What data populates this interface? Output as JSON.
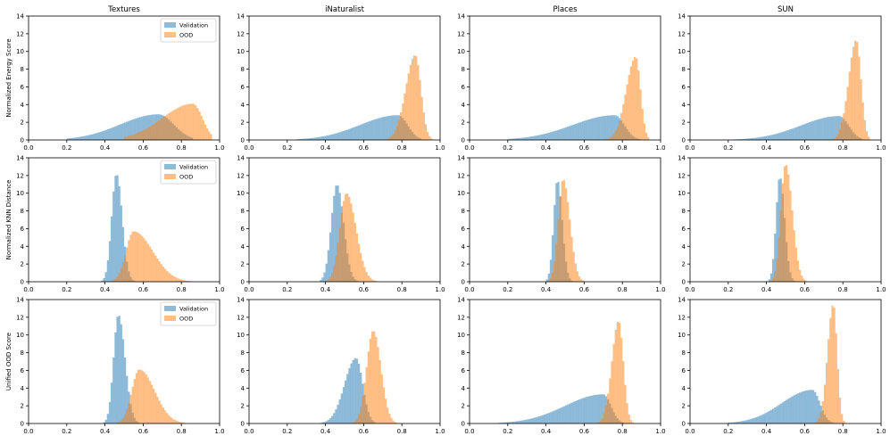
{
  "figure": {
    "colors": {
      "validation": "#1f77b4",
      "ood": "#ff7f0e",
      "alpha": 0.5
    }
  },
  "chart_data": [
    {
      "type": "histogram",
      "title": "Textures",
      "ylabel": "Normalized Energy Score",
      "xlim": [
        0,
        1
      ],
      "ylim": [
        0,
        14
      ],
      "xticks": [
        "0.0",
        "0.2",
        "0.4",
        "0.6",
        "0.8",
        "1.0"
      ],
      "yticks": [
        "0",
        "2",
        "4",
        "6",
        "8",
        "10",
        "12",
        "14"
      ],
      "legend": {
        "placement": "top-right",
        "entries": [
          "Validation",
          "OOD"
        ]
      },
      "series": [
        {
          "name": "Validation",
          "shape": "skew",
          "mode": 0.68,
          "left": 0.2,
          "right": 0.86,
          "peak": 2.9,
          "wl": 0.2,
          "wr": 0.08
        },
        {
          "name": "OOD",
          "shape": "skew",
          "mode": 0.86,
          "left": 0.5,
          "right": 0.96,
          "peak": 4.1,
          "wl": 0.16,
          "wr": 0.05
        }
      ]
    },
    {
      "type": "histogram",
      "title": "iNaturalist",
      "ylabel": "",
      "xlim": [
        0,
        1
      ],
      "ylim": [
        0,
        14
      ],
      "xticks": [
        "0.0",
        "0.2",
        "0.4",
        "0.6",
        "0.8",
        "1.0"
      ],
      "yticks": [
        "0",
        "2",
        "4",
        "6",
        "8",
        "10",
        "12",
        "14"
      ],
      "series": [
        {
          "name": "Validation",
          "shape": "skew",
          "mode": 0.78,
          "left": 0.25,
          "right": 0.9,
          "peak": 2.8,
          "wl": 0.2,
          "wr": 0.05
        },
        {
          "name": "OOD",
          "shape": "skew",
          "mode": 0.87,
          "left": 0.62,
          "right": 0.96,
          "peak": 9.6,
          "wl": 0.05,
          "wr": 0.03
        }
      ]
    },
    {
      "type": "histogram",
      "title": "Places",
      "ylabel": "",
      "xlim": [
        0,
        1
      ],
      "ylim": [
        0,
        14
      ],
      "xticks": [
        "0.0",
        "0.2",
        "0.4",
        "0.6",
        "0.8",
        "1.0"
      ],
      "yticks": [
        "0",
        "2",
        "4",
        "6",
        "8",
        "10",
        "12",
        "14"
      ],
      "series": [
        {
          "name": "Validation",
          "shape": "skew",
          "mode": 0.76,
          "left": 0.2,
          "right": 0.9,
          "peak": 2.8,
          "wl": 0.22,
          "wr": 0.05
        },
        {
          "name": "OOD",
          "shape": "skew",
          "mode": 0.87,
          "left": 0.68,
          "right": 0.94,
          "peak": 9.4,
          "wl": 0.05,
          "wr": 0.025
        }
      ]
    },
    {
      "type": "histogram",
      "title": "SUN",
      "ylabel": "",
      "xlim": [
        0,
        1
      ],
      "ylim": [
        0,
        14
      ],
      "xticks": [
        "0.0",
        "0.2",
        "0.4",
        "0.6",
        "0.8",
        "1.0"
      ],
      "yticks": [
        "0",
        "2",
        "4",
        "6",
        "8",
        "10",
        "12",
        "14"
      ],
      "series": [
        {
          "name": "Validation",
          "shape": "skew",
          "mode": 0.78,
          "left": 0.2,
          "right": 0.9,
          "peak": 2.7,
          "wl": 0.2,
          "wr": 0.05
        },
        {
          "name": "OOD",
          "shape": "skew",
          "mode": 0.87,
          "left": 0.7,
          "right": 0.94,
          "peak": 11.3,
          "wl": 0.04,
          "wr": 0.025
        }
      ]
    },
    {
      "type": "histogram",
      "title": "",
      "ylabel": "Normalized KNN Distance",
      "xlim": [
        0,
        1
      ],
      "ylim": [
        0,
        14
      ],
      "xticks": [
        "0.0",
        "0.2",
        "0.4",
        "0.6",
        "0.8",
        "1.0"
      ],
      "yticks": [
        "0",
        "2",
        "4",
        "6",
        "8",
        "10",
        "12",
        "14"
      ],
      "legend": {
        "placement": "top-right",
        "entries": [
          "Validation",
          "OOD"
        ]
      },
      "series": [
        {
          "name": "Validation",
          "shape": "skew",
          "mode": 0.46,
          "left": 0.38,
          "right": 0.6,
          "peak": 12.2,
          "wl": 0.025,
          "wr": 0.03
        },
        {
          "name": "OOD",
          "shape": "skew",
          "mode": 0.55,
          "left": 0.42,
          "right": 0.85,
          "peak": 5.7,
          "wl": 0.04,
          "wr": 0.1
        }
      ]
    },
    {
      "type": "histogram",
      "title": "",
      "ylabel": "",
      "xlim": [
        0,
        1
      ],
      "ylim": [
        0,
        14
      ],
      "xticks": [
        "0.0",
        "0.2",
        "0.4",
        "0.6",
        "0.8",
        "1.0"
      ],
      "yticks": [
        "0",
        "2",
        "4",
        "6",
        "8",
        "10",
        "12",
        "14"
      ],
      "series": [
        {
          "name": "Validation",
          "shape": "skew",
          "mode": 0.46,
          "left": 0.37,
          "right": 0.6,
          "peak": 11.0,
          "wl": 0.03,
          "wr": 0.035
        },
        {
          "name": "OOD",
          "shape": "skew",
          "mode": 0.51,
          "left": 0.4,
          "right": 0.68,
          "peak": 10.0,
          "wl": 0.035,
          "wr": 0.05
        }
      ]
    },
    {
      "type": "histogram",
      "title": "",
      "ylabel": "",
      "xlim": [
        0,
        1
      ],
      "ylim": [
        0,
        14
      ],
      "xticks": [
        "0.0",
        "0.2",
        "0.4",
        "0.6",
        "0.8",
        "1.0"
      ],
      "yticks": [
        "0",
        "2",
        "4",
        "6",
        "8",
        "10",
        "12",
        "14"
      ],
      "series": [
        {
          "name": "Validation",
          "shape": "skew",
          "mode": 0.46,
          "left": 0.38,
          "right": 0.58,
          "peak": 11.5,
          "wl": 0.02,
          "wr": 0.025
        },
        {
          "name": "OOD",
          "shape": "skew",
          "mode": 0.49,
          "left": 0.4,
          "right": 0.65,
          "peak": 11.6,
          "wl": 0.025,
          "wr": 0.035
        }
      ]
    },
    {
      "type": "histogram",
      "title": "",
      "ylabel": "",
      "xlim": [
        0,
        1
      ],
      "ylim": [
        0,
        14
      ],
      "xticks": [
        "0.0",
        "0.2",
        "0.4",
        "0.6",
        "0.8",
        "1.0"
      ],
      "yticks": [
        "0",
        "2",
        "4",
        "6",
        "8",
        "10",
        "12",
        "14"
      ],
      "series": [
        {
          "name": "Validation",
          "shape": "skew",
          "mode": 0.47,
          "left": 0.38,
          "right": 0.58,
          "peak": 11.9,
          "wl": 0.02,
          "wr": 0.025
        },
        {
          "name": "OOD",
          "shape": "skew",
          "mode": 0.5,
          "left": 0.4,
          "right": 0.65,
          "peak": 13.3,
          "wl": 0.025,
          "wr": 0.035
        }
      ]
    },
    {
      "type": "histogram",
      "title": "",
      "ylabel": "Unified OOD Score",
      "xlim": [
        0,
        1
      ],
      "ylim": [
        0,
        14
      ],
      "xticks": [
        "0.0",
        "0.2",
        "0.4",
        "0.6",
        "0.8",
        "1.0"
      ],
      "yticks": [
        "0",
        "2",
        "4",
        "6",
        "8",
        "10",
        "12",
        "14"
      ],
      "legend": {
        "placement": "top-right",
        "entries": [
          "Validation",
          "OOD"
        ]
      },
      "series": [
        {
          "name": "Validation",
          "shape": "skew",
          "mode": 0.47,
          "left": 0.38,
          "right": 0.62,
          "peak": 12.3,
          "wl": 0.025,
          "wr": 0.035
        },
        {
          "name": "OOD",
          "shape": "skew",
          "mode": 0.58,
          "left": 0.42,
          "right": 0.85,
          "peak": 6.1,
          "wl": 0.04,
          "wr": 0.08
        }
      ]
    },
    {
      "type": "histogram",
      "title": "",
      "ylabel": "",
      "xlim": [
        0,
        1
      ],
      "ylim": [
        0,
        14
      ],
      "xticks": [
        "0.0",
        "0.2",
        "0.4",
        "0.6",
        "0.8",
        "1.0"
      ],
      "yticks": [
        "0",
        "2",
        "4",
        "6",
        "8",
        "10",
        "12",
        "14"
      ],
      "series": [
        {
          "name": "Validation",
          "shape": "skew",
          "mode": 0.56,
          "left": 0.35,
          "right": 0.66,
          "peak": 7.4,
          "wl": 0.06,
          "wr": 0.035
        },
        {
          "name": "OOD",
          "shape": "skew",
          "mode": 0.65,
          "left": 0.52,
          "right": 0.78,
          "peak": 10.5,
          "wl": 0.035,
          "wr": 0.04
        }
      ]
    },
    {
      "type": "histogram",
      "title": "",
      "ylabel": "",
      "xlim": [
        0,
        1
      ],
      "ylim": [
        0,
        14
      ],
      "xticks": [
        "0.0",
        "0.2",
        "0.4",
        "0.6",
        "0.8",
        "1.0"
      ],
      "yticks": [
        "0",
        "2",
        "4",
        "6",
        "8",
        "10",
        "12",
        "14"
      ],
      "series": [
        {
          "name": "Validation",
          "shape": "skew",
          "mode": 0.7,
          "left": 0.15,
          "right": 0.82,
          "peak": 3.3,
          "wl": 0.2,
          "wr": 0.04
        },
        {
          "name": "OOD",
          "shape": "skew",
          "mode": 0.78,
          "left": 0.64,
          "right": 0.86,
          "peak": 11.6,
          "wl": 0.035,
          "wr": 0.025
        }
      ]
    },
    {
      "type": "histogram",
      "title": "",
      "ylabel": "",
      "xlim": [
        0,
        1
      ],
      "ylim": [
        0,
        14
      ],
      "xticks": [
        "0.0",
        "0.2",
        "0.4",
        "0.6",
        "0.8",
        "1.0"
      ],
      "yticks": [
        "0",
        "2",
        "4",
        "6",
        "8",
        "10",
        "12",
        "14"
      ],
      "series": [
        {
          "name": "Validation",
          "shape": "skew",
          "mode": 0.64,
          "left": 0.2,
          "right": 0.78,
          "peak": 3.8,
          "wl": 0.16,
          "wr": 0.04
        },
        {
          "name": "OOD",
          "shape": "skew",
          "mode": 0.75,
          "left": 0.63,
          "right": 0.84,
          "peak": 13.5,
          "wl": 0.03,
          "wr": 0.02
        }
      ]
    }
  ]
}
